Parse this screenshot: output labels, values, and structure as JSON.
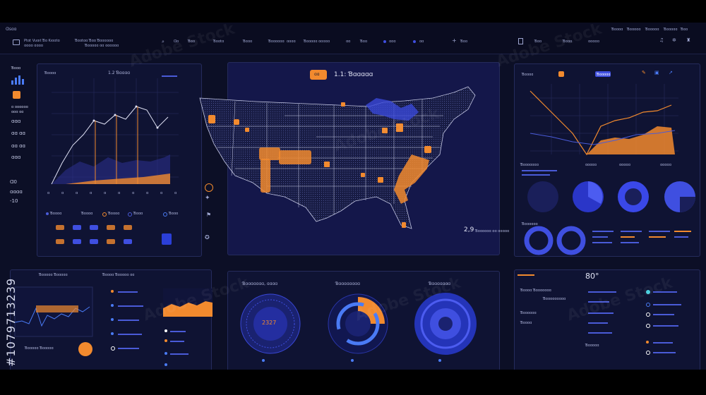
{
  "app": {
    "logo_text": "Ɑsɑɑ",
    "title_line1": "Ptɑt Vuɑıt Ɓɑ Kıɑɑtɑ",
    "title_line2": "ɑɑɑɑ ɑɑɑɑ"
  },
  "topbar": {
    "center_block1": "Ɓɑɑtɑɑ Ɓɑɑ Ɓɑɑɑɑɑɑ",
    "center_block2": "Ɓɑɑɑɑɑ ɑɑ ɑɑɑɑɑɑ",
    "menu": [
      "Ɑɑ",
      "Ɓɑɑ",
      "Ɓɑɑtɑ",
      "Ɓɑɑɑ",
      "Ɓɑɑɑɑɑɑ",
      "ɑɑɑɑ",
      "Ɓɑɑɑɑɑ ɑɑɑɑɑ",
      "ɑɑ",
      "Ɓɑɑ",
      "ɑɑɑ",
      "ɑɑ",
      "Ɓɑɑ",
      "Ɓɑɑ",
      "Ɓɑɑɑ",
      "ɑɑɑɑɑ"
    ],
    "right_menu": [
      "Ɓɑɑɑɑ",
      "Ɓɑɑɑɑɑ",
      "Ɓɑɑɑɑɑ",
      "Ɓɑɑɑɑɑ",
      "Ɓɑɑ"
    ]
  },
  "left_sidebar": {
    "labels": [
      "Ɓɑɑɑ",
      "ɑ ɑɑɑɑɑɑ",
      "ɑɑɑ ɑɑ",
      "ɑɑɑ",
      "ɑɑ ɑɑ",
      "ɑɑ ɑɑ",
      "ɑɑɑ",
      "ɑɑɑɑ",
      "ɑɑɑ",
      "ɑɑɑ"
    ],
    "values": [
      "Ɑ0",
      "ɑ0",
      "-10"
    ]
  },
  "left_chart": {
    "title": "Ɓɑɑɑɑ",
    "subtitle": "1.2 Ɓɑɑɑɑ",
    "tick_labels": [
      "ɑ",
      "ɑ",
      "ɑ",
      "ɑ",
      "ɑ",
      "ɑ",
      "ɑ",
      "ɑ",
      "ɑ",
      "ɑ"
    ],
    "legend": [
      "Ɓɑɑɑɑ",
      "Ɓɑɑɑɑ",
      "Ɓɑɑɑɑ",
      "Ɓɑɑɑ",
      "Ɓɑɑɑ"
    ]
  },
  "map": {
    "badge": "ɑɑ",
    "title": "1.1: Ɓɑɑɑɑɑ",
    "footer_value": "2,9",
    "footer_text": "Ɓɑɑɑɑɑɑ ɑɑ ɑɑɑɑɑ"
  },
  "right_chart": {
    "title": "Ɓɑɑɑɑ",
    "badge": "Ɓɑɑɑɑɑ",
    "section_labels": [
      "Ɓɑɑɑɑɑɑɑ",
      "ɑɑɑɑɑ",
      "ɑɑɑɑɑ",
      "ɑɑɑɑɑ"
    ],
    "donut_label": "Ɓɑɑɑɑɑɑ"
  },
  "bottom_left": {
    "title": "Ɓɑɑɑɑɑ Ɓɑɑɑɑɑ",
    "subtitle": "Ɓɑɑɑɑ Ɓɑɑɑɑɑ ɑɑ",
    "gauge_label": "Ɓɑɑɑɑɑ Ɓɑɑɑɑɑ"
  },
  "bottom_center": {
    "labels": [
      "Ɓɑɑɑɑɑɑɑ, ɑɑɑɑ",
      "Ɓɑɑɑɑɑɑɑɑ",
      "Ɓɑɑɑɑɑɑɑ"
    ],
    "gauge1_value": "2327"
  },
  "bottom_right": {
    "title": "80°",
    "list": [
      "Ɓɑɑɑɑ Ɓɑɑɑɑɑɑɑ",
      "Ɓɑɑɑɑɑɑɑɑɑ",
      "Ɓɑɑɑɑɑɑ",
      "Ɓɑɑɑɑ",
      "Ɓɑɑɑɑɑ"
    ]
  },
  "watermark": "Adobe Stock",
  "stock_id": "#1079713239",
  "colors": {
    "accent": "#f28a2e",
    "blue": "#3f4fe0",
    "background": "#0c0f26",
    "panel": "#0f1333"
  }
}
